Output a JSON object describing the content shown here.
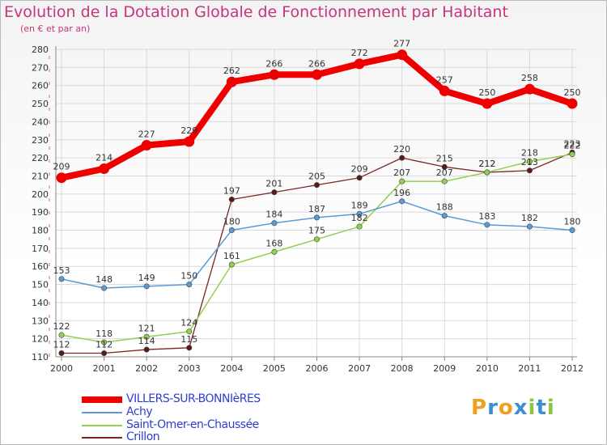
{
  "title": "Evolution de la Dotation Globale de Fonctionnement par Habitant",
  "subtitle": "(en € et par an)",
  "logo_text": "Proxiti",
  "colors": {
    "title": "#c8347a",
    "grid": "#d9d9d9",
    "axis": "#888888",
    "legend_text": "#2c3fd1"
  },
  "chart_data": {
    "type": "line",
    "title": "Evolution de la Dotation Globale de Fonctionnement par Habitant",
    "subtitle": "(en € et par an)",
    "xlabel": "",
    "ylabel": "",
    "x": [
      "2000",
      "2001",
      "2002",
      "2003",
      "2004",
      "2005",
      "2006",
      "2007",
      "2008",
      "2009",
      "2010",
      "2011",
      "2012"
    ],
    "ylim": [
      110,
      280
    ],
    "yticks": [
      110,
      120,
      130,
      140,
      150,
      160,
      170,
      180,
      190,
      200,
      210,
      220,
      230,
      240,
      250,
      260,
      270,
      280
    ],
    "grid": true,
    "legend_position": "bottom-left",
    "series": [
      {
        "name": "VILLERS-SUR-BONNIèRES",
        "color": "#ee0000",
        "values": [
          209,
          214,
          227,
          229,
          262,
          266,
          266,
          272,
          277,
          257,
          250,
          258,
          250
        ]
      },
      {
        "name": "Achy",
        "color": "#5b9bd5",
        "values": [
          153,
          148,
          149,
          150,
          180,
          184,
          187,
          189,
          196,
          188,
          183,
          182,
          180
        ]
      },
      {
        "name": "Saint-Omer-en-Chaussée",
        "color": "#92d050",
        "values": [
          122,
          118,
          121,
          124,
          161,
          168,
          175,
          182,
          207,
          207,
          212,
          218,
          222
        ]
      },
      {
        "name": "Crillon",
        "color": "#7b2525",
        "values": [
          112,
          112,
          114,
          115,
          197,
          201,
          205,
          209,
          220,
          215,
          212,
          213,
          223
        ]
      }
    ]
  }
}
